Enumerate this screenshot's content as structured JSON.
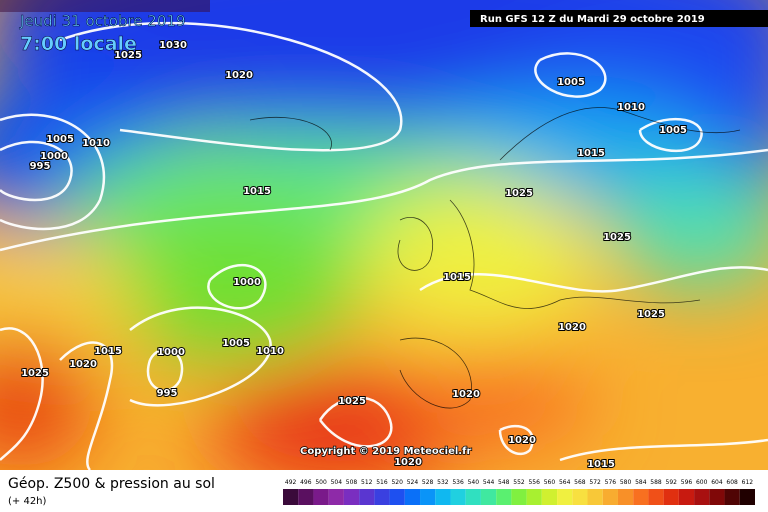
{
  "header": {
    "valid_date": "Jeudi 31 octobre 2019",
    "local_time": "7:00 locale",
    "run": "Run GFS 12 Z du Mardi 29 octobre 2019"
  },
  "map": {
    "copyright": "Copyright © 2019 Meteociel.fr",
    "isobar_labels": [
      "1030",
      "1025",
      "1020",
      "1005",
      "1010",
      "1000",
      "995",
      "1015",
      "1005",
      "1010",
      "1005",
      "1015",
      "1025",
      "1025",
      "1015",
      "1000",
      "1025",
      "1020",
      "1015",
      "1005",
      "1010",
      "1000",
      "1025",
      "1020",
      "995",
      "1025",
      "1020",
      "1020",
      "1020",
      "1015"
    ]
  },
  "footer": {
    "title": "Géop. Z500 & pression au sol",
    "subtitle": "(+ 42h)"
  },
  "scale": {
    "labels": [
      492,
      496,
      500,
      504,
      508,
      512,
      516,
      520,
      524,
      528,
      532,
      536,
      540,
      544,
      548,
      552,
      556,
      560,
      564,
      568,
      572,
      576,
      580,
      584,
      588,
      592,
      596,
      600,
      604,
      608,
      612
    ],
    "colors": [
      "#3a0a3a",
      "#5a1060",
      "#7a1a8a",
      "#8e2aa8",
      "#7a2ec0",
      "#5a36d0",
      "#3a40e0",
      "#1e50f0",
      "#0a70f8",
      "#0a94f8",
      "#10b8f0",
      "#20d0e0",
      "#30e0c0",
      "#40e8a0",
      "#5af070",
      "#80f040",
      "#a8f030",
      "#d0f030",
      "#f0f040",
      "#f8e040",
      "#f8c838",
      "#f8ac30",
      "#f89028",
      "#f87020",
      "#f05018",
      "#e03010",
      "#c81a10",
      "#a81010",
      "#800808",
      "#500404",
      "#200000"
    ]
  }
}
